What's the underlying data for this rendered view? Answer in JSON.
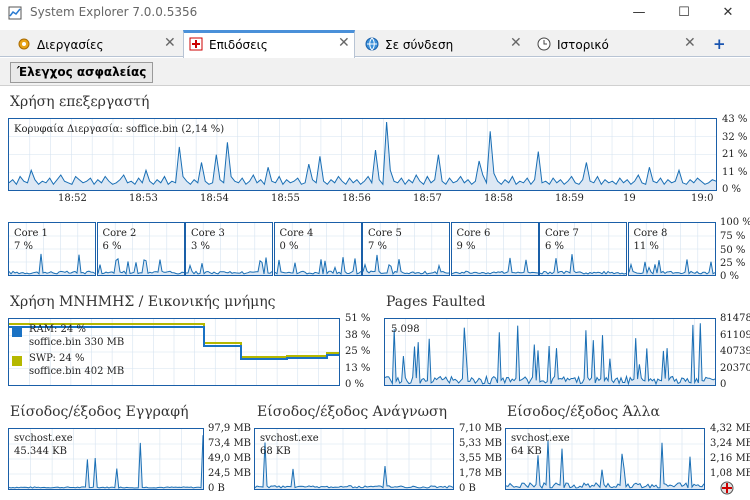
{
  "window": {
    "title": "System Explorer 7.0.0.5356",
    "minimize": "—",
    "maximize": "☐",
    "close": "✕"
  },
  "tabs": [
    {
      "label": "Διεργασίες",
      "icon": "gear-icon"
    },
    {
      "label": "Επιδόσεις",
      "icon": "performance-icon"
    },
    {
      "label": "Σε σύνδεση",
      "icon": "globe-icon"
    },
    {
      "label": "Ιστορικό",
      "icon": "clock-icon"
    }
  ],
  "tab_close": "✕",
  "tab_add": "+",
  "toolbar": {
    "security_button": "Έλεγχος ασφαλείας"
  },
  "cpu": {
    "title": "Χρήση επεξεργαστή",
    "top_process": "Κορυφαία Διεργασία: soffice.bin (2,14 %)",
    "y_ticks": [
      "43 %",
      "32 %",
      "21 %",
      "11 %",
      "0 %"
    ],
    "x_ticks": [
      "18:52",
      "18:53",
      "18:54",
      "18:55",
      "18:56",
      "18:57",
      "18:58",
      "18:59",
      "19",
      "19:0"
    ],
    "values": [
      4,
      6,
      3,
      8,
      5,
      4,
      12,
      6,
      3,
      5,
      4,
      7,
      3,
      6,
      9,
      5,
      4,
      3,
      8,
      6,
      4,
      5,
      7,
      3,
      6,
      4,
      8,
      5,
      3,
      4,
      6,
      9,
      4,
      5,
      3,
      7,
      4,
      12,
      5,
      3,
      6,
      4,
      8,
      3,
      5,
      4,
      27,
      8,
      5,
      3,
      6,
      4,
      17,
      5,
      3,
      4,
      22,
      6,
      4,
      30,
      8,
      5,
      4,
      7,
      3,
      5,
      9,
      4,
      6,
      3,
      14,
      5,
      4,
      8,
      3,
      6,
      4,
      5,
      7,
      3,
      4,
      16,
      6,
      4,
      21,
      5,
      3,
      6,
      4,
      8,
      5,
      3,
      7,
      4,
      6,
      3,
      5,
      8,
      4,
      25,
      6,
      3,
      43,
      12,
      5,
      4,
      7,
      3,
      6,
      4,
      9,
      5,
      3,
      8,
      4,
      6,
      22,
      5,
      3,
      7,
      4,
      5,
      8,
      4,
      6,
      3,
      5,
      18,
      9,
      4,
      37,
      10,
      5,
      3,
      6,
      4,
      8,
      3,
      5,
      4,
      7,
      3,
      6,
      24,
      4,
      5,
      3,
      7,
      4,
      6,
      3,
      5,
      8,
      4,
      3,
      6,
      17,
      5,
      4,
      8,
      3,
      6,
      4,
      5,
      3,
      7,
      4,
      6,
      3,
      5,
      9,
      4,
      3,
      14,
      5,
      4,
      7,
      3,
      6,
      4,
      5,
      12,
      4,
      3,
      6,
      4,
      7,
      5,
      3,
      4,
      6,
      5
    ]
  },
  "cores": {
    "y_ticks": [
      "100 %",
      "75 %",
      "50 %",
      "25 %",
      "0 %"
    ],
    "items": [
      {
        "name": "Core 1",
        "value": "7 %"
      },
      {
        "name": "Core 2",
        "value": "6 %"
      },
      {
        "name": "Core 3",
        "value": "3 %"
      },
      {
        "name": "Core 4",
        "value": "0 %"
      },
      {
        "name": "Core 5",
        "value": "7 %"
      },
      {
        "name": "Core 6",
        "value": "9 %"
      },
      {
        "name": "Core 7",
        "value": "6 %"
      },
      {
        "name": "Core 8",
        "value": "11 %"
      }
    ]
  },
  "memory": {
    "title": "Χρήση ΜΝΗΜΗΣ / Εικονικής μνήμης",
    "ram_label": "RAM: 24 %",
    "ram_process": "soffice.bin 330 MB",
    "swp_label": "SWP: 24 %",
    "swp_process": "soffice.bin 402 MB",
    "y_ticks": [
      "51 %",
      "38 %",
      "25 %",
      "13 %",
      "0 %"
    ],
    "ram_color": "#1a72c4",
    "swp_color": "#b5b800"
  },
  "pages": {
    "title": "Pages Faulted",
    "current": "5.098",
    "y_ticks": [
      "81478",
      "61109",
      "40739",
      "20370",
      "0"
    ]
  },
  "io_write": {
    "title": "Είσοδος/έξοδος Εγγραφή",
    "process": "svchost.exe",
    "value": "45.344 KB",
    "y_ticks": [
      "97,9 MB",
      "73,4 MB",
      "49,0 MB",
      "24,5 MB",
      "0 B"
    ]
  },
  "io_read": {
    "title": "Είσοδος/έξοδος Ανάγνωση",
    "process": "svchost.exe",
    "value": "68 KB",
    "y_ticks": [
      "7,10 MB",
      "5,33 MB",
      "3,55 MB",
      "1,78 MB",
      "0 B"
    ]
  },
  "io_other": {
    "title": "Είσοδος/έξοδος Άλλα",
    "process": "svchost.exe",
    "value": "64 KB",
    "y_ticks": [
      "4,32 MB",
      "3,24 MB",
      "2,16 MB",
      "1,08 MB",
      "0 B"
    ]
  },
  "colors": {
    "line": "#1a6fb5",
    "fill": "#dde8f4",
    "grid": "#d6e3f0",
    "border": "#1a5fa8"
  }
}
